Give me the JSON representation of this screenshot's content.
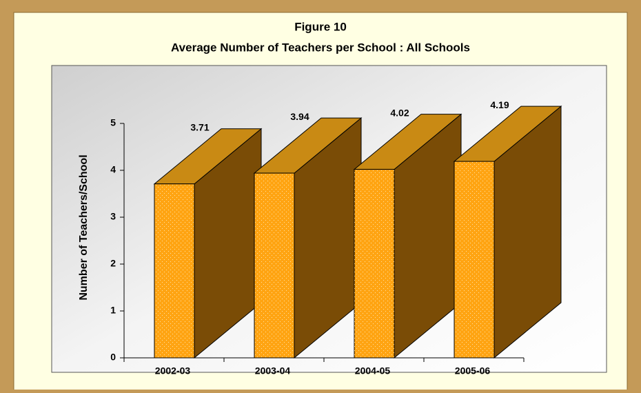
{
  "chart_data": {
    "type": "bar3d",
    "title": "Figure 10",
    "subtitle": "Average Number of Teachers per School : All Schools",
    "y_label": "Number of Teachers/School",
    "categories": [
      "2002-03",
      "2003-04",
      "2004-05",
      "2005-06"
    ],
    "values": [
      3.71,
      3.94,
      4.02,
      4.19
    ],
    "ylim": [
      0,
      5
    ],
    "yticks": [
      0,
      1,
      2,
      3,
      4,
      5
    ],
    "colors": {
      "front": "#ffa412",
      "top": "#c98a14",
      "side": "#7a4c06"
    }
  }
}
